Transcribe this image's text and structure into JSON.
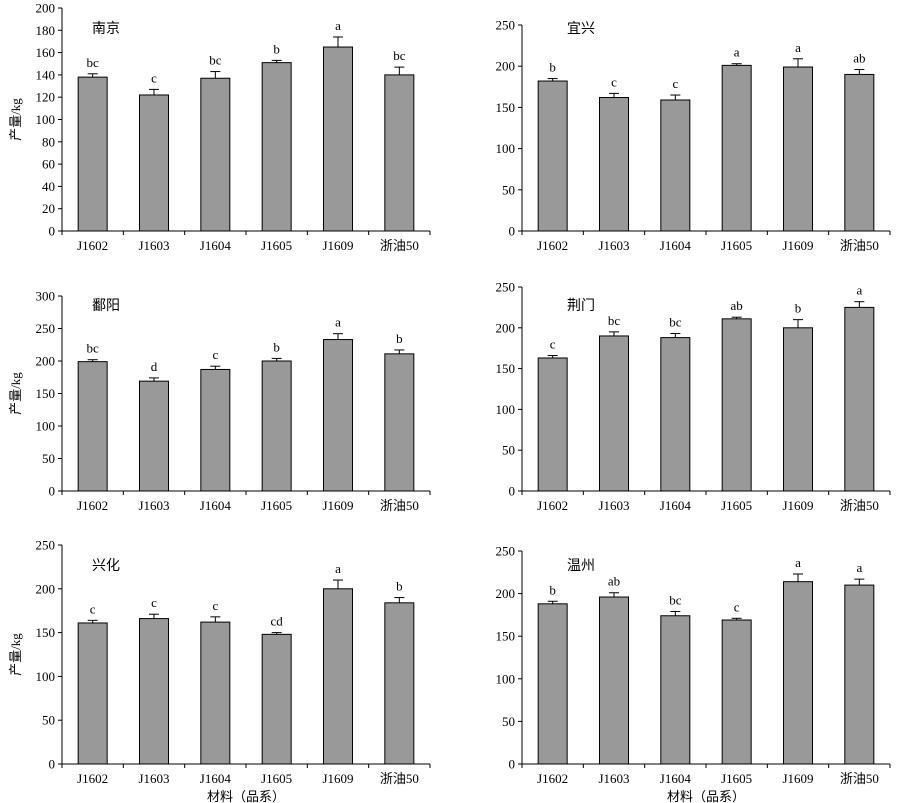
{
  "colors": {
    "bar_fill": "#999999",
    "bar_stroke": "#000000",
    "axis": "#000000"
  },
  "chart_data": [
    {
      "type": "bar",
      "title": "南京",
      "ylabel": "产量/kg",
      "xlabel": "",
      "ylim": [
        0,
        200
      ],
      "yticks": [
        0,
        20,
        40,
        60,
        80,
        100,
        120,
        140,
        160,
        180,
        200
      ],
      "categories": [
        "J1602",
        "J1603",
        "J1604",
        "J1605",
        "J1609",
        "浙油50"
      ],
      "values": [
        138,
        122,
        137,
        151,
        165,
        140
      ],
      "errors": [
        3,
        5,
        6,
        2,
        9,
        7
      ],
      "letters": [
        "bc",
        "c",
        "bc",
        "b",
        "a",
        "bc"
      ]
    },
    {
      "type": "bar",
      "title": "宜兴",
      "ylabel": "",
      "xlabel": "",
      "ylim": [
        0,
        250
      ],
      "yticks": [
        0,
        50,
        100,
        150,
        200,
        250
      ],
      "categories": [
        "J1602",
        "J1603",
        "J1604",
        "J1605",
        "J1609",
        "浙油50"
      ],
      "values": [
        182,
        162,
        159,
        201,
        199,
        190
      ],
      "errors": [
        3,
        5,
        6,
        2,
        10,
        6
      ],
      "letters": [
        "b",
        "c",
        "c",
        "a",
        "a",
        "ab"
      ]
    },
    {
      "type": "bar",
      "title": "鄱阳",
      "ylabel": "产量/kg",
      "xlabel": "",
      "ylim": [
        0,
        300
      ],
      "yticks": [
        0,
        50,
        100,
        150,
        200,
        250,
        300
      ],
      "categories": [
        "J1602",
        "J1603",
        "J1604",
        "J1605",
        "J1609",
        "浙油50"
      ],
      "values": [
        199,
        169,
        187,
        200,
        233,
        211
      ],
      "errors": [
        3,
        5,
        5,
        4,
        9,
        6
      ],
      "letters": [
        "bc",
        "d",
        "c",
        "b",
        "a",
        "b"
      ]
    },
    {
      "type": "bar",
      "title": "荆门",
      "ylabel": "",
      "xlabel": "",
      "ylim": [
        0,
        250
      ],
      "yticks": [
        0,
        50,
        100,
        150,
        200,
        250
      ],
      "categories": [
        "J1602",
        "J1603",
        "J1604",
        "J1605",
        "J1609",
        "浙油50"
      ],
      "values": [
        163,
        190,
        188,
        211,
        200,
        225
      ],
      "errors": [
        3,
        5,
        5,
        2,
        10,
        7
      ],
      "letters": [
        "c",
        "bc",
        "bc",
        "ab",
        "b",
        "a"
      ]
    },
    {
      "type": "bar",
      "title": "兴化",
      "ylabel": "产量/kg",
      "xlabel": "材料（品系）",
      "ylim": [
        0,
        250
      ],
      "yticks": [
        0,
        50,
        100,
        150,
        200,
        250
      ],
      "categories": [
        "J1602",
        "J1603",
        "J1604",
        "J1605",
        "J1609",
        "浙油50"
      ],
      "values": [
        161,
        166,
        162,
        148,
        200,
        184
      ],
      "errors": [
        3,
        5,
        6,
        2,
        10,
        6
      ],
      "letters": [
        "c",
        "c",
        "c",
        "cd",
        "a",
        "b"
      ]
    },
    {
      "type": "bar",
      "title": "温州",
      "ylabel": "",
      "xlabel": "材料（品系）",
      "ylim": [
        0,
        250
      ],
      "yticks": [
        0,
        50,
        100,
        150,
        200,
        250
      ],
      "categories": [
        "J1602",
        "J1603",
        "J1604",
        "J1605",
        "J1609",
        "浙油50"
      ],
      "values": [
        188,
        196,
        174,
        169,
        214,
        210
      ],
      "errors": [
        3,
        5,
        5,
        2,
        9,
        7
      ],
      "letters": [
        "b",
        "ab",
        "bc",
        "c",
        "a",
        "a"
      ]
    }
  ]
}
